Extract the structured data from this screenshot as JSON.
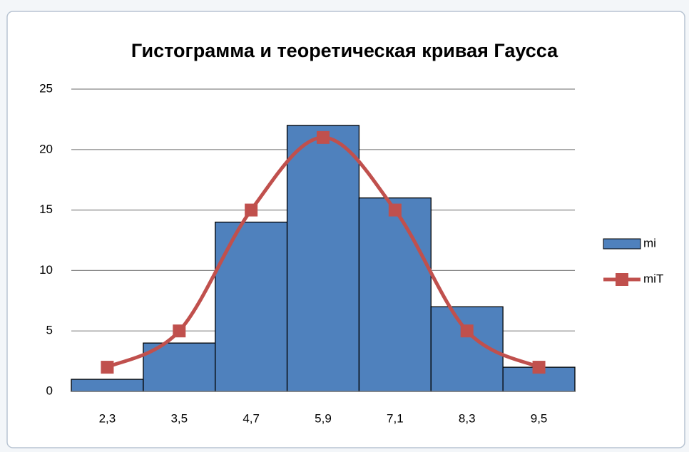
{
  "chart_data": {
    "type": "bar",
    "title": "Гистограмма  и теоретическая кривая Гаусса",
    "categories": [
      "2,3",
      "3,5",
      "4,7",
      "5,9",
      "7,1",
      "8,3",
      "9,5"
    ],
    "series": [
      {
        "name": "mi",
        "type": "bar",
        "color": "#4f81bd",
        "values": [
          1,
          4,
          14,
          22,
          16,
          7,
          2
        ]
      },
      {
        "name": "miT",
        "type": "line",
        "smooth": true,
        "marker": "square",
        "color": "#c0504d",
        "values": [
          2,
          5,
          15,
          21,
          15,
          5,
          2
        ]
      }
    ],
    "ylim": [
      0,
      25
    ],
    "yticks": [
      0,
      5,
      10,
      15,
      20,
      25
    ],
    "grid": true,
    "legend": "right"
  }
}
